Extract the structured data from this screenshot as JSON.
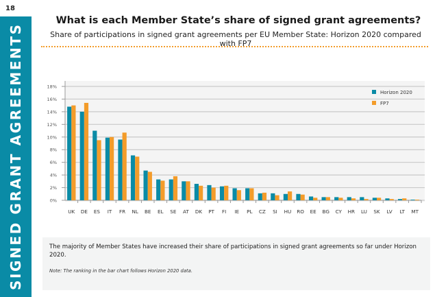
{
  "page": {
    "number": "18",
    "section_label": "SIGNED GRANT AGREEMENTS",
    "title": "What is each Member State’s share of signed grant agreements?",
    "subtitle": "Share of participations in signed grant agreements per EU Member State: Horizon 2020 compared with FP7",
    "colors": {
      "accent": "#0a8ba6",
      "divider": "#f39c2a"
    }
  },
  "note": {
    "main": "The majority of Member States have increased their share of participations in signed grant agreements so far under Horizon 2020.",
    "small": "Note: The ranking in the bar chart follows Horizon 2020 data."
  },
  "chart_data": {
    "type": "bar",
    "title": "",
    "xlabel": "",
    "ylabel": "",
    "ylim": [
      0,
      18
    ],
    "yticks": [
      0,
      2,
      4,
      6,
      8,
      10,
      12,
      14,
      16,
      18
    ],
    "ytick_labels": [
      "0%",
      "2%",
      "4%",
      "6%",
      "8%",
      "10%",
      "12%",
      "14%",
      "16%",
      "18%"
    ],
    "grid": true,
    "legend_position": "top-right",
    "categories": [
      "UK",
      "DE",
      "ES",
      "IT",
      "FR",
      "NL",
      "BE",
      "EL",
      "SE",
      "AT",
      "DK",
      "PT",
      "FI",
      "IE",
      "PL",
      "CZ",
      "SI",
      "HU",
      "RO",
      "EE",
      "BG",
      "CY",
      "HR",
      "LU",
      "SK",
      "LV",
      "LT",
      "MT"
    ],
    "series": [
      {
        "name": "Horizon 2020",
        "color": "#0a8ba6",
        "values": [
          14.8,
          14.0,
          11.0,
          9.9,
          9.6,
          7.1,
          4.7,
          3.3,
          3.3,
          3.0,
          2.6,
          2.4,
          2.2,
          1.9,
          1.9,
          1.1,
          1.1,
          1.0,
          1.0,
          0.6,
          0.5,
          0.5,
          0.5,
          0.5,
          0.4,
          0.3,
          0.2,
          0.1
        ]
      },
      {
        "name": "FP7",
        "color": "#f39c2a",
        "values": [
          15.0,
          15.4,
          9.5,
          10.0,
          10.7,
          6.9,
          4.5,
          3.1,
          3.8,
          3.0,
          2.3,
          2.0,
          2.3,
          1.6,
          1.9,
          1.2,
          0.8,
          1.4,
          0.9,
          0.4,
          0.5,
          0.4,
          0.3,
          0.2,
          0.4,
          0.2,
          0.3,
          0.1
        ]
      }
    ]
  }
}
